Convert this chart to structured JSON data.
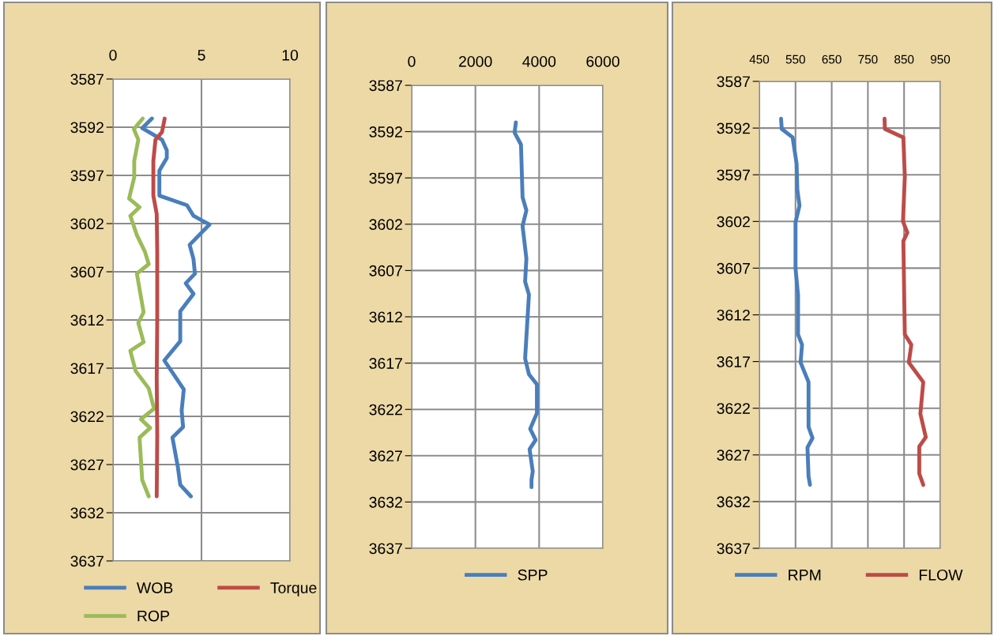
{
  "chart_data": [
    {
      "type": "line",
      "ylim": [
        3637,
        3587
      ],
      "yticks": [
        3587,
        3592,
        3597,
        3602,
        3607,
        3612,
        3617,
        3622,
        3627,
        3632,
        3637
      ],
      "xlim": [
        0,
        10
      ],
      "xticks": [
        0,
        5,
        10
      ],
      "grid": true,
      "legend": "bottom",
      "line_style": "solid",
      "series": [
        {
          "name": "WOB",
          "color": "#4a7ebb",
          "x": [
            2.2,
            1.65,
            2.77,
            3.04,
            3.04,
            2.62,
            2.62,
            4.18,
            4.55,
            5.45,
            4.33,
            4.55,
            4.63,
            4.11,
            4.55,
            3.8,
            3.8,
            2.9,
            4.0,
            3.88,
            3.96,
            3.36,
            3.66,
            3.8,
            4.4
          ],
          "values": [
            3591.1,
            3592.1,
            3593.3,
            3594.4,
            3595.2,
            3596.5,
            3599.1,
            3600.1,
            3601.2,
            3602.1,
            3604.2,
            3605.7,
            3607.2,
            3608.2,
            3609.3,
            3611.1,
            3614.2,
            3616.2,
            3619.2,
            3621.4,
            3623.1,
            3624.2,
            3627.2,
            3629.1,
            3630.3
          ]
        },
        {
          "name": "ROP",
          "color": "#9bbb59",
          "x": [
            1.68,
            1.18,
            1.43,
            1.2,
            1.2,
            0.91,
            1.5,
            0.98,
            1.35,
            1.8,
            2.02,
            1.35,
            1.73,
            1.43,
            1.73,
            0.98,
            1.28,
            2.02,
            2.32,
            1.58,
            2.1,
            1.5,
            1.65,
            2.02
          ],
          "values": [
            3591.1,
            3592.2,
            3593.3,
            3595.5,
            3597.2,
            3599.4,
            3600.3,
            3601.2,
            3603.2,
            3604.9,
            3606.2,
            3607.2,
            3611.2,
            3612.3,
            3614.3,
            3615.2,
            3617.3,
            3619.1,
            3621.2,
            3622.3,
            3623.2,
            3624.2,
            3628.6,
            3630.3
          ]
        },
        {
          "name": "Torque",
          "color": "#be4b48",
          "x": [
            2.92,
            2.77,
            2.4,
            2.28,
            2.28,
            2.47,
            2.5,
            2.5,
            2.47,
            2.5,
            2.47
          ],
          "values": [
            3591.1,
            3592.5,
            3593.3,
            3595.5,
            3599.1,
            3601.0,
            3605.0,
            3612.0,
            3618.0,
            3624.0,
            3630.3
          ]
        }
      ]
    },
    {
      "type": "line",
      "ylim": [
        3637,
        3587
      ],
      "yticks": [
        3587,
        3592,
        3597,
        3602,
        3607,
        3612,
        3617,
        3622,
        3627,
        3632,
        3637
      ],
      "xlim": [
        0,
        6000
      ],
      "xticks": [
        0,
        2000,
        4000,
        6000
      ],
      "grid": true,
      "legend": "bottom",
      "line_style": "solid",
      "series": [
        {
          "name": "SPP",
          "color": "#4a7ebb",
          "x": [
            3270,
            3230,
            3430,
            3480,
            3600,
            3480,
            3600,
            3560,
            3680,
            3560,
            3680,
            3930,
            3930,
            3720,
            3890,
            3700,
            3800,
            3760,
            3760
          ],
          "values": [
            3591.0,
            3592.1,
            3593.4,
            3599.1,
            3600.5,
            3602.2,
            3605.7,
            3608.2,
            3609.6,
            3616.5,
            3618.2,
            3619.3,
            3622.4,
            3624.1,
            3625.3,
            3626.3,
            3628.7,
            3629.6,
            3630.4
          ]
        }
      ]
    },
    {
      "type": "line",
      "ylim": [
        3637,
        3587
      ],
      "yticks": [
        3587,
        3592,
        3597,
        3602,
        3607,
        3612,
        3617,
        3622,
        3627,
        3632,
        3637
      ],
      "xlim": [
        450,
        950
      ],
      "xticks": [
        450,
        550,
        650,
        750,
        850,
        950
      ],
      "grid": true,
      "legend": "bottom",
      "line_style": "solid",
      "series": [
        {
          "name": "RPM",
          "color": "#4a7ebb",
          "x": [
            510,
            512,
            542,
            553,
            555,
            561,
            550,
            550,
            557,
            557,
            568,
            564,
            586,
            586,
            597,
            583,
            586,
            590
          ],
          "values": [
            3591.0,
            3592.1,
            3593.0,
            3595.8,
            3598.6,
            3600.3,
            3602.1,
            3607.0,
            3609.9,
            3614.1,
            3615.2,
            3617.1,
            3619.2,
            3624.0,
            3625.2,
            3626.2,
            3629.3,
            3630.2
          ]
        },
        {
          "name": "FLOW",
          "color": "#be4b48",
          "x": [
            796,
            797,
            848,
            852,
            847,
            859,
            848,
            852,
            870,
            863,
            903,
            895,
            910,
            892,
            892,
            903
          ],
          "values": [
            3591.0,
            3592.1,
            3593.0,
            3597.2,
            3602.0,
            3603.2,
            3604.1,
            3614.1,
            3615.2,
            3617.1,
            3619.2,
            3622.6,
            3625.1,
            3626.1,
            3629.0,
            3630.2
          ]
        }
      ]
    }
  ]
}
